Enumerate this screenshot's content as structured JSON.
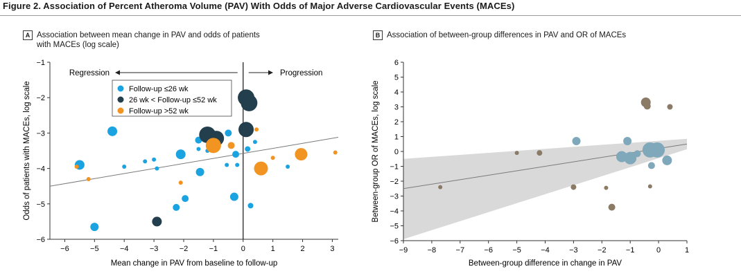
{
  "figure_title": "Figure 2. Association of Percent Atheroma Volume (PAV) With Odds of Major Adverse Cardiovascular Events (MACEs)",
  "panel_a": {
    "letter": "A",
    "title_line1": "Association between mean change in PAV and odds of patients",
    "title_line2": "with MACEs (log scale)"
  },
  "panel_b": {
    "letter": "B",
    "title": "Association of between-group differences in PAV and OR of MACEs"
  },
  "colors": {
    "blue": "#1aa3e0",
    "dark": "#233f4d",
    "orange": "#f29421",
    "steel": "#7fa8bb",
    "taupe": "#8a7a66",
    "band": "#d9d9d9",
    "trend": "#7a7a7a"
  },
  "chart_data": [
    {
      "type": "scatter",
      "panel": "A",
      "xlabel": "Mean change in PAV from baseline to follow-up",
      "ylabel": "Odds of patients with MACEs, log scale",
      "xlim": [
        -6.5,
        3.2
      ],
      "ylim": [
        -6,
        -1
      ],
      "xticks": [
        -6,
        -5,
        -4,
        -3,
        -2,
        -1,
        0,
        1,
        2,
        3
      ],
      "yticks": [
        -6,
        -5,
        -4,
        -3,
        -2,
        -1
      ],
      "arrow_left": "Regression",
      "arrow_right": "Progression",
      "legend": [
        {
          "label": "Follow-up ≤26 wk",
          "series": "blue"
        },
        {
          "label": "26 wk < Follow-up ≤52 wk",
          "series": "dark"
        },
        {
          "label": "Follow-up >52 wk",
          "series": "orange"
        }
      ],
      "trendline": {
        "x": [
          -6.5,
          3.2
        ],
        "y": [
          -4.5,
          -3.12
        ]
      },
      "series": [
        {
          "name": "Follow-up ≤26 wk",
          "color_key": "blue",
          "points": [
            {
              "x": -5.5,
              "y": -3.9,
              "size": 7
            },
            {
              "x": -4.4,
              "y": -2.95,
              "size": 7
            },
            {
              "x": -4.0,
              "y": -3.95,
              "size": 3
            },
            {
              "x": -3.3,
              "y": -3.8,
              "size": 3
            },
            {
              "x": -3.0,
              "y": -3.75,
              "size": 3
            },
            {
              "x": -2.9,
              "y": -4.0,
              "size": 3
            },
            {
              "x": -2.1,
              "y": -3.6,
              "size": 7
            },
            {
              "x": -1.95,
              "y": -4.85,
              "size": 5
            },
            {
              "x": -2.25,
              "y": -5.1,
              "size": 5
            },
            {
              "x": -1.5,
              "y": -3.2,
              "size": 5
            },
            {
              "x": -1.5,
              "y": -3.45,
              "size": 3
            },
            {
              "x": -1.45,
              "y": -4.1,
              "size": 6
            },
            {
              "x": -1.2,
              "y": -3.5,
              "size": 3
            },
            {
              "x": -1.0,
              "y": -3.3,
              "size": 5
            },
            {
              "x": -0.5,
              "y": -3.0,
              "size": 5
            },
            {
              "x": -0.55,
              "y": -3.9,
              "size": 3
            },
            {
              "x": -0.25,
              "y": -3.6,
              "size": 5
            },
            {
              "x": -0.2,
              "y": -3.9,
              "size": 3
            },
            {
              "x": -0.3,
              "y": -4.8,
              "size": 6
            },
            {
              "x": 0.15,
              "y": -3.45,
              "size": 4
            },
            {
              "x": 0.25,
              "y": -5.05,
              "size": 4
            },
            {
              "x": 0.4,
              "y": -3.25,
              "size": 3
            },
            {
              "x": 1.5,
              "y": -3.95,
              "size": 3
            },
            {
              "x": -5.0,
              "y": -5.65,
              "size": 6
            }
          ]
        },
        {
          "name": "26 wk < Follow-up ≤52 wk",
          "color_key": "dark",
          "points": [
            {
              "x": 0.1,
              "y": -2.0,
              "size": 12
            },
            {
              "x": 0.2,
              "y": -2.15,
              "size": 12
            },
            {
              "x": 0.1,
              "y": -2.9,
              "size": 11
            },
            {
              "x": -1.2,
              "y": -3.05,
              "size": 12
            },
            {
              "x": -0.9,
              "y": -3.15,
              "size": 11
            },
            {
              "x": -2.9,
              "y": -5.5,
              "size": 7
            }
          ]
        },
        {
          "name": "Follow-up >52 wk",
          "color_key": "orange",
          "points": [
            {
              "x": -5.6,
              "y": -3.95,
              "size": 3
            },
            {
              "x": -5.2,
              "y": -4.3,
              "size": 3
            },
            {
              "x": -2.1,
              "y": -4.4,
              "size": 3
            },
            {
              "x": -1.0,
              "y": -3.35,
              "size": 11
            },
            {
              "x": -0.4,
              "y": -3.35,
              "size": 5
            },
            {
              "x": 0.45,
              "y": -2.9,
              "size": 3
            },
            {
              "x": 0.6,
              "y": -4.0,
              "size": 10
            },
            {
              "x": 1.0,
              "y": -3.7,
              "size": 3
            },
            {
              "x": 1.95,
              "y": -3.6,
              "size": 9
            },
            {
              "x": 3.1,
              "y": -3.55,
              "size": 3
            }
          ]
        }
      ]
    },
    {
      "type": "scatter",
      "panel": "B",
      "xlabel": "Between-group difference in change in PAV",
      "ylabel": "Between-group OR of MACEs, log scale",
      "xlim": [
        -9,
        1
      ],
      "ylim": [
        -6,
        6
      ],
      "xticks": [
        -9,
        -8,
        -7,
        -6,
        -5,
        -4,
        -3,
        -2,
        -1,
        0,
        1
      ],
      "yticks": [
        -6,
        -5,
        -4,
        -3,
        -2,
        -1,
        0,
        1,
        2,
        3,
        4,
        5,
        6
      ],
      "confidence_band_upper": {
        "x": [
          -9,
          1
        ],
        "y": [
          -0.5,
          0.85
        ]
      },
      "confidence_band_lower": {
        "x": [
          -9,
          1
        ],
        "y": [
          -5.9,
          0.15
        ]
      },
      "trendline": {
        "x": [
          -9,
          1
        ],
        "y": [
          -2.5,
          0.5
        ]
      },
      "series": [
        {
          "name": "",
          "color_key": "steel",
          "points": [
            {
              "x": -2.9,
              "y": 0.7,
              "size": 6
            },
            {
              "x": -1.1,
              "y": 0.7,
              "size": 6
            },
            {
              "x": -1.3,
              "y": -0.35,
              "size": 8
            },
            {
              "x": -1.0,
              "y": -0.45,
              "size": 9
            },
            {
              "x": -0.75,
              "y": -0.15,
              "size": 5
            },
            {
              "x": -0.3,
              "y": 0.1,
              "size": 11
            },
            {
              "x": -0.05,
              "y": 0.1,
              "size": 11
            },
            {
              "x": -0.25,
              "y": -0.95,
              "size": 5
            },
            {
              "x": 0.3,
              "y": -0.6,
              "size": 7
            }
          ]
        },
        {
          "name": "",
          "color_key": "taupe",
          "points": [
            {
              "x": -7.7,
              "y": -2.4,
              "size": 3
            },
            {
              "x": -5.0,
              "y": -0.1,
              "size": 3
            },
            {
              "x": -4.2,
              "y": -0.1,
              "size": 4
            },
            {
              "x": -3.0,
              "y": -2.4,
              "size": 4
            },
            {
              "x": -1.85,
              "y": -2.45,
              "size": 3
            },
            {
              "x": -1.65,
              "y": -3.75,
              "size": 5
            },
            {
              "x": -0.45,
              "y": 3.3,
              "size": 7
            },
            {
              "x": -0.4,
              "y": 3.05,
              "size": 5
            },
            {
              "x": 0.4,
              "y": 3.0,
              "size": 4
            },
            {
              "x": -0.3,
              "y": -2.35,
              "size": 3
            }
          ]
        }
      ]
    }
  ]
}
